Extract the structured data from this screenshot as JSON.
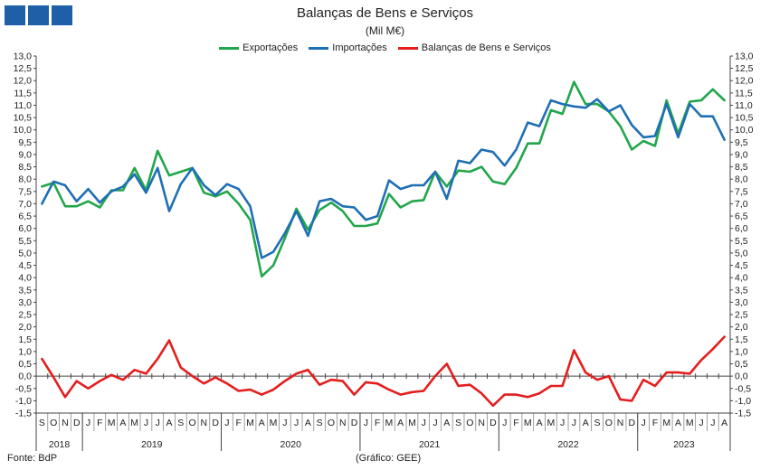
{
  "header": {
    "title": "Balanças de Bens e Serviços",
    "subtitle": "(Mil M€)"
  },
  "footer": {
    "source": "Fonte: BdP",
    "credit": "(Gráfico: GEE)"
  },
  "colors": {
    "exportacoes": "#22a64b",
    "importacoes": "#1f6fb5",
    "balancas": "#e31e1e",
    "logo": "#1f5fa8"
  },
  "chart_data": {
    "type": "line",
    "title": "Balanças de Bens e Serviços",
    "ylabel": "(Mil M€)",
    "ylim": [
      -1.5,
      13.0
    ],
    "ytick_step": 0.5,
    "grid": false,
    "legend": "top-center",
    "month_labels": [
      "S",
      "O",
      "N",
      "D",
      "J",
      "F",
      "M",
      "A",
      "M",
      "J",
      "J",
      "A",
      "S",
      "O",
      "N",
      "D",
      "J",
      "F",
      "M",
      "A",
      "M",
      "J",
      "J",
      "A",
      "S",
      "O",
      "N",
      "D",
      "J",
      "F",
      "M",
      "A",
      "M",
      "J",
      "J",
      "A",
      "S",
      "O",
      "N",
      "D",
      "J",
      "F",
      "M",
      "A",
      "M",
      "J",
      "J",
      "A",
      "S",
      "O",
      "N",
      "D",
      "J",
      "F",
      "M",
      "A",
      "M",
      "J",
      "J",
      "A"
    ],
    "years": [
      {
        "label": "2018",
        "start": 0,
        "count": 4
      },
      {
        "label": "2019",
        "start": 4,
        "count": 12
      },
      {
        "label": "2020",
        "start": 16,
        "count": 12
      },
      {
        "label": "2021",
        "start": 28,
        "count": 12
      },
      {
        "label": "2022",
        "start": 40,
        "count": 12
      },
      {
        "label": "2023",
        "start": 52,
        "count": 8
      }
    ],
    "series": [
      {
        "name": "Exportações",
        "values": [
          7.7,
          7.85,
          6.9,
          6.9,
          7.1,
          6.85,
          7.55,
          7.55,
          8.45,
          7.55,
          9.15,
          8.15,
          8.3,
          8.45,
          7.45,
          7.3,
          7.5,
          7.0,
          6.35,
          4.05,
          4.5,
          5.6,
          6.8,
          5.95,
          6.75,
          7.05,
          6.7,
          6.1,
          6.1,
          6.2,
          7.4,
          6.85,
          7.1,
          7.15,
          8.3,
          7.7,
          8.35,
          8.3,
          8.5,
          7.9,
          7.8,
          8.45,
          9.45,
          9.45,
          10.8,
          10.65,
          11.95,
          11.05,
          11.05,
          10.75,
          10.15,
          9.2,
          9.55,
          9.35,
          11.2,
          9.85,
          11.15,
          11.2,
          11.65,
          11.2
        ]
      },
      {
        "name": "Importações",
        "values": [
          7.0,
          7.9,
          7.75,
          7.1,
          7.6,
          7.05,
          7.5,
          7.7,
          8.2,
          7.45,
          8.45,
          6.7,
          7.8,
          8.45,
          7.75,
          7.35,
          7.8,
          7.6,
          6.9,
          4.8,
          5.05,
          5.8,
          6.7,
          5.7,
          7.1,
          7.2,
          6.9,
          6.85,
          6.35,
          6.5,
          7.95,
          7.6,
          7.75,
          7.75,
          8.3,
          7.2,
          8.75,
          8.65,
          9.2,
          9.1,
          8.55,
          9.2,
          10.3,
          10.15,
          11.2,
          11.05,
          10.95,
          10.9,
          11.25,
          10.75,
          11.0,
          10.2,
          9.7,
          9.75,
          11.05,
          9.7,
          11.05,
          10.55,
          10.55,
          9.6
        ]
      },
      {
        "name": "Balanças de Bens e Serviços",
        "values": [
          0.7,
          -0.05,
          -0.85,
          -0.2,
          -0.5,
          -0.2,
          0.05,
          -0.15,
          0.25,
          0.1,
          0.7,
          1.45,
          0.35,
          0.0,
          -0.3,
          -0.05,
          -0.3,
          -0.6,
          -0.55,
          -0.75,
          -0.55,
          -0.2,
          0.1,
          0.25,
          -0.35,
          -0.15,
          -0.2,
          -0.75,
          -0.25,
          -0.3,
          -0.55,
          -0.75,
          -0.65,
          -0.6,
          -0.0,
          0.5,
          -0.4,
          -0.35,
          -0.7,
          -1.2,
          -0.75,
          -0.75,
          -0.85,
          -0.7,
          -0.4,
          -0.4,
          1.05,
          0.15,
          -0.15,
          0.0,
          -0.95,
          -1.0,
          -0.15,
          -0.4,
          0.15,
          0.15,
          0.1,
          0.65,
          1.1,
          1.6
        ]
      }
    ]
  }
}
